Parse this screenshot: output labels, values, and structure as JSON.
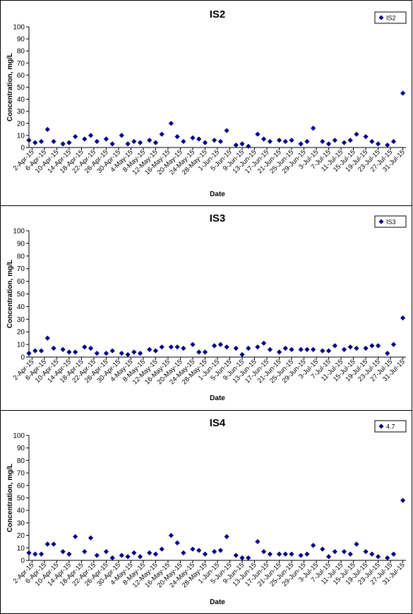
{
  "chart_data": [
    {
      "type": "scatter",
      "title": "IS2",
      "xlabel": "Date",
      "ylabel": "Concentration, mg/L",
      "ylim": [
        0,
        100
      ],
      "yticks": [
        0,
        10,
        20,
        30,
        40,
        50,
        60,
        70,
        80,
        90,
        100
      ],
      "xlim": [
        "2015-04-01",
        "2015-08-01"
      ],
      "xtick_labels": [
        "2-Apr-15",
        "6-Apr-15",
        "10-Apr-15",
        "14-Apr-15",
        "18-Apr-15",
        "22-Apr-15",
        "26-Apr-15",
        "30-Apr-15",
        "4-May-15",
        "8-May-15",
        "12-May-15",
        "16-May-15",
        "20-May-15",
        "24-May-15",
        "28-May-15",
        "1-Jun-15",
        "5-Jun-15",
        "9-Jun-15",
        "13-Jun-15",
        "17-Jun-15",
        "21-Jun-15",
        "25-Jun-15",
        "29-Jun-15",
        "3-Jul-15",
        "7-Jul-15",
        "11-Jul-15",
        "15-Jul-15",
        "19-Jul-15",
        "23-Jul-15",
        "27-Jul-15",
        "31-Jul-15"
      ],
      "legend": {
        "position": "top-right",
        "label": "IS2"
      },
      "grid": false,
      "marker_color": "#000080",
      "series": [
        {
          "name": "IS2",
          "x": [
            "2015-04-01",
            "2015-04-03",
            "2015-04-05",
            "2015-04-07",
            "2015-04-09",
            "2015-04-12",
            "2015-04-14",
            "2015-04-16",
            "2015-04-19",
            "2015-04-21",
            "2015-04-23",
            "2015-04-26",
            "2015-04-28",
            "2015-05-01",
            "2015-05-03",
            "2015-05-05",
            "2015-05-07",
            "2015-05-10",
            "2015-05-12",
            "2015-05-14",
            "2015-05-17",
            "2015-05-19",
            "2015-05-21",
            "2015-05-24",
            "2015-05-26",
            "2015-05-28",
            "2015-05-31",
            "2015-06-02",
            "2015-06-04",
            "2015-06-07",
            "2015-06-09",
            "2015-06-11",
            "2015-06-14",
            "2015-06-16",
            "2015-06-18",
            "2015-06-21",
            "2015-06-23",
            "2015-06-25",
            "2015-06-28",
            "2015-06-30",
            "2015-07-02",
            "2015-07-05",
            "2015-07-07",
            "2015-07-09",
            "2015-07-12",
            "2015-07-14",
            "2015-07-16",
            "2015-07-19",
            "2015-07-21",
            "2015-07-23",
            "2015-07-26",
            "2015-07-28",
            "2015-07-31"
          ],
          "y": [
            6,
            4,
            5,
            15,
            5,
            3,
            4,
            9,
            7,
            10,
            5,
            7,
            3,
            10,
            3,
            5,
            4,
            6,
            4,
            11,
            20,
            9,
            5,
            8,
            7,
            4,
            6,
            5,
            14,
            2,
            3,
            1,
            11,
            7,
            5,
            6,
            5,
            6,
            3,
            5,
            16,
            5,
            3,
            6,
            4,
            6,
            11,
            9,
            5,
            3,
            2,
            5,
            45
          ]
        }
      ]
    },
    {
      "type": "scatter",
      "title": "IS3",
      "xlabel": "Date",
      "ylabel": "Concentration, mg/L",
      "ylim": [
        0,
        100
      ],
      "yticks": [
        0,
        10,
        20,
        30,
        40,
        50,
        60,
        70,
        80,
        90,
        100
      ],
      "xlim": [
        "2015-04-01",
        "2015-08-01"
      ],
      "xtick_labels": [
        "2-Apr-15",
        "6-Apr-15",
        "10-Apr-15",
        "14-Apr-15",
        "18-Apr-15",
        "22-Apr-15",
        "26-Apr-15",
        "30-Apr-15",
        "4-May-15",
        "8-May-15",
        "12-May-15",
        "16-May-15",
        "20-May-15",
        "24-May-15",
        "28-May-15",
        "1-Jun-15",
        "5-Jun-15",
        "9-Jun-15",
        "13-Jun-15",
        "17-Jun-15",
        "21-Jun-15",
        "25-Jun-15",
        "29-Jun-15",
        "3-Jul-15",
        "7-Jul-15",
        "11-Jul-15",
        "15-Jul-15",
        "19-Jul-15",
        "23-Jul-15",
        "27-Jul-15",
        "31-Jul-15"
      ],
      "legend": {
        "position": "top-right",
        "label": "IS3"
      },
      "grid": false,
      "marker_color": "#000080",
      "series": [
        {
          "name": "IS3",
          "x": [
            "2015-04-01",
            "2015-04-03",
            "2015-04-05",
            "2015-04-07",
            "2015-04-09",
            "2015-04-12",
            "2015-04-14",
            "2015-04-16",
            "2015-04-19",
            "2015-04-21",
            "2015-04-23",
            "2015-04-26",
            "2015-04-28",
            "2015-05-01",
            "2015-05-03",
            "2015-05-05",
            "2015-05-07",
            "2015-05-10",
            "2015-05-12",
            "2015-05-14",
            "2015-05-17",
            "2015-05-19",
            "2015-05-21",
            "2015-05-24",
            "2015-05-26",
            "2015-05-28",
            "2015-05-31",
            "2015-06-02",
            "2015-06-04",
            "2015-06-07",
            "2015-06-09",
            "2015-06-11",
            "2015-06-14",
            "2015-06-16",
            "2015-06-18",
            "2015-06-21",
            "2015-06-23",
            "2015-06-25",
            "2015-06-28",
            "2015-06-30",
            "2015-07-02",
            "2015-07-05",
            "2015-07-07",
            "2015-07-09",
            "2015-07-12",
            "2015-07-14",
            "2015-07-16",
            "2015-07-19",
            "2015-07-21",
            "2015-07-23",
            "2015-07-26",
            "2015-07-28",
            "2015-07-31"
          ],
          "y": [
            3,
            5,
            5,
            15,
            7,
            6,
            4,
            4,
            8,
            7,
            3,
            3,
            5,
            3,
            2,
            4,
            3,
            6,
            5,
            8,
            8,
            8,
            7,
            10,
            4,
            4,
            9,
            10,
            8,
            7,
            2,
            7,
            8,
            11,
            6,
            4,
            7,
            6,
            6,
            6,
            6,
            5,
            5,
            9,
            6,
            8,
            7,
            7,
            9,
            9,
            3,
            10,
            31
          ]
        }
      ]
    },
    {
      "type": "scatter",
      "title": "IS4",
      "xlabel": "Date",
      "ylabel": "Concentration, mg/L",
      "ylim": [
        0,
        100
      ],
      "yticks": [
        0,
        10,
        20,
        30,
        40,
        50,
        60,
        70,
        80,
        90,
        100
      ],
      "xlim": [
        "2015-04-01",
        "2015-08-01"
      ],
      "xtick_labels": [
        "2-Apr-15",
        "6-Apr-15",
        "10-Apr-15",
        "14-Apr-15",
        "18-Apr-15",
        "22-Apr-15",
        "26-Apr-15",
        "30-Apr-15",
        "4-May-15",
        "8-May-15",
        "12-May-15",
        "16-May-15",
        "20-May-15",
        "24-May-15",
        "28-May-15",
        "1-Jun-15",
        "5-Jun-15",
        "9-Jun-15",
        "13-Jun-15",
        "17-Jun-15",
        "21-Jun-15",
        "25-Jun-15",
        "29-Jun-15",
        "3-Jul-15",
        "7-Jul-15",
        "11-Jul-15",
        "15-Jul-15",
        "19-Jul-15",
        "23-Jul-15",
        "27-Jul-15",
        "31-Jul-15"
      ],
      "legend": {
        "position": "top-right",
        "label": "4.7"
      },
      "grid": false,
      "marker_color": "#000080",
      "series": [
        {
          "name": "4.7",
          "x": [
            "2015-04-01",
            "2015-04-03",
            "2015-04-05",
            "2015-04-07",
            "2015-04-09",
            "2015-04-12",
            "2015-04-14",
            "2015-04-16",
            "2015-04-19",
            "2015-04-21",
            "2015-04-23",
            "2015-04-26",
            "2015-04-28",
            "2015-05-01",
            "2015-05-03",
            "2015-05-05",
            "2015-05-07",
            "2015-05-10",
            "2015-05-12",
            "2015-05-14",
            "2015-05-17",
            "2015-05-19",
            "2015-05-21",
            "2015-05-24",
            "2015-05-26",
            "2015-05-28",
            "2015-05-31",
            "2015-06-02",
            "2015-06-04",
            "2015-06-07",
            "2015-06-09",
            "2015-06-11",
            "2015-06-14",
            "2015-06-16",
            "2015-06-18",
            "2015-06-21",
            "2015-06-23",
            "2015-06-25",
            "2015-06-28",
            "2015-06-30",
            "2015-07-02",
            "2015-07-05",
            "2015-07-07",
            "2015-07-09",
            "2015-07-12",
            "2015-07-14",
            "2015-07-16",
            "2015-07-19",
            "2015-07-21",
            "2015-07-23",
            "2015-07-26",
            "2015-07-28",
            "2015-07-31"
          ],
          "y": [
            6,
            5,
            5,
            13,
            13,
            7,
            5,
            19,
            7,
            18,
            4,
            7,
            2,
            4,
            3,
            6,
            3,
            6,
            5,
            9,
            20,
            14,
            6,
            9,
            8,
            5,
            7,
            8,
            19,
            4,
            2,
            2,
            15,
            7,
            5,
            5,
            5,
            5,
            4,
            5,
            12,
            9,
            3,
            7,
            7,
            5,
            13,
            7,
            5,
            3,
            2,
            5,
            48
          ]
        }
      ]
    }
  ]
}
